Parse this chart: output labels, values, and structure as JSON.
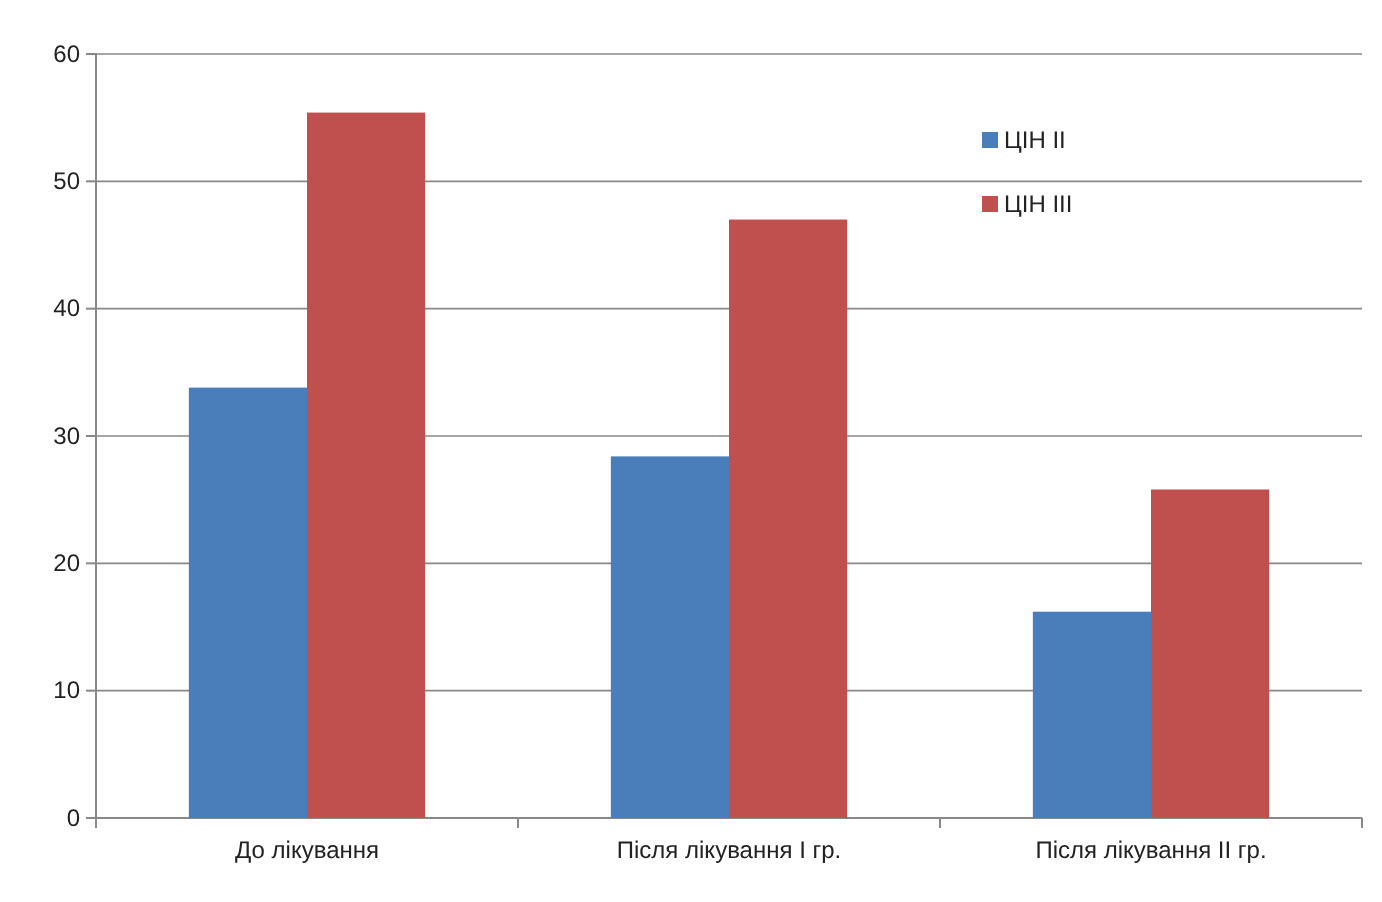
{
  "chart_data": {
    "type": "bar",
    "categories": [
      "До лікування",
      "Після лікування І гр.",
      "Після лікування ІІ гр."
    ],
    "series": [
      {
        "name": "ЦІН ІІ",
        "color": "#4a7ebb",
        "values": [
          33.8,
          28.4,
          16.2
        ]
      },
      {
        "name": "ЦІН ІІІ",
        "color": "#c0504d",
        "values": [
          55.4,
          47.0,
          25.8
        ]
      }
    ],
    "ylim": [
      0,
      60
    ],
    "yticks": [
      0,
      10,
      20,
      30,
      40,
      50,
      60
    ],
    "grid": "y",
    "legend": "top right"
  }
}
